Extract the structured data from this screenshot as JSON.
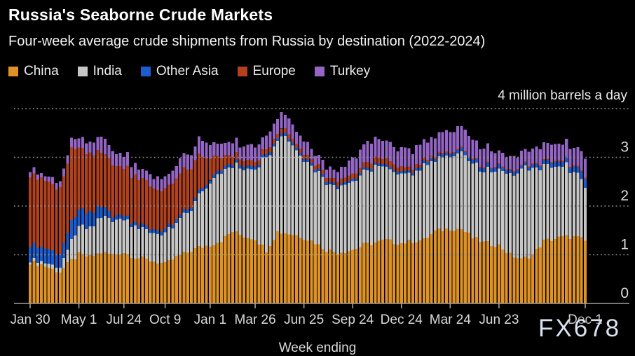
{
  "header": {
    "title": "Russia's Seaborne Crude Markets",
    "subtitle": "Four-week average crude shipments from Russia by destination (2022-2024)",
    "unit_label": "4 million barrels a day"
  },
  "watermark": "FX678",
  "colors": {
    "background": "#000000",
    "grid": "#8f8f8f",
    "axis": "#a0a0a0",
    "tick_text": "#d9d9d9",
    "ytick_text": "#dcdcdc",
    "watermark": "#d8e2f0"
  },
  "chart_data": {
    "type": "bar",
    "stacked": true,
    "title": "Russia's Seaborne Crude Markets",
    "subtitle": "Four-week average crude shipments from Russia by destination (2022-2024)",
    "xlabel": "Week ending",
    "ylabel": "million barrels a day",
    "ylim": [
      0,
      4
    ],
    "yticks": [
      0,
      1,
      2,
      3,
      4
    ],
    "ytick_labels_shown": [
      "0",
      "1",
      "2",
      "3"
    ],
    "grid": "dotted horizontal",
    "legend_position": "top",
    "x_unit": "week index from Jan 30 2022 (week 0) to Dec 1 2024 (week 148)",
    "weeks_total": 149,
    "xticks": [
      {
        "label": "Jan 30",
        "week": 0
      },
      {
        "label": "May 1",
        "week": 13
      },
      {
        "label": "Jul 24",
        "week": 25
      },
      {
        "label": "Oct 9",
        "week": 36
      },
      {
        "label": "Jan 1",
        "week": 48
      },
      {
        "label": "Mar 26",
        "week": 60
      },
      {
        "label": "Jun 25",
        "week": 73
      },
      {
        "label": "Sep 24",
        "week": 86
      },
      {
        "label": "Dec 24",
        "week": 99
      },
      {
        "label": "Mar 24",
        "week": 112
      },
      {
        "label": "Jun 23",
        "week": 125
      },
      {
        "label": "Dec 1",
        "week": 148
      }
    ],
    "sampling": "weekly stacked bars; series values in million barrels/day read from chart; keyframes [week,value] linearly interpolated between anchors",
    "series": [
      {
        "name": "China",
        "color": "#DF9226",
        "jitter": 0.05,
        "keyframes": [
          [
            0,
            0.85
          ],
          [
            3,
            0.8
          ],
          [
            6,
            0.7
          ],
          [
            8,
            0.65
          ],
          [
            11,
            0.88
          ],
          [
            13,
            1.0
          ],
          [
            16,
            0.95
          ],
          [
            19,
            1.05
          ],
          [
            22,
            1.0
          ],
          [
            25,
            1.05
          ],
          [
            28,
            0.95
          ],
          [
            31,
            0.9
          ],
          [
            34,
            0.85
          ],
          [
            36,
            0.8
          ],
          [
            39,
            0.95
          ],
          [
            42,
            1.05
          ],
          [
            45,
            1.15
          ],
          [
            48,
            1.2
          ],
          [
            51,
            1.3
          ],
          [
            54,
            1.48
          ],
          [
            57,
            1.38
          ],
          [
            60,
            1.33
          ],
          [
            63,
            1.1
          ],
          [
            66,
            1.47
          ],
          [
            68,
            1.45
          ],
          [
            71,
            1.4
          ],
          [
            73,
            1.35
          ],
          [
            76,
            1.25
          ],
          [
            79,
            1.1
          ],
          [
            82,
            1.05
          ],
          [
            86,
            1.1
          ],
          [
            89,
            1.2
          ],
          [
            92,
            1.25
          ],
          [
            95,
            1.3
          ],
          [
            97,
            1.25
          ],
          [
            99,
            1.24
          ],
          [
            102,
            1.28
          ],
          [
            105,
            1.3
          ],
          [
            108,
            1.48
          ],
          [
            112,
            1.54
          ],
          [
            115,
            1.53
          ],
          [
            118,
            1.35
          ],
          [
            121,
            1.25
          ],
          [
            125,
            1.19
          ],
          [
            128,
            1.0
          ],
          [
            131,
            0.9
          ],
          [
            134,
            1.0
          ],
          [
            137,
            1.28
          ],
          [
            140,
            1.33
          ],
          [
            143,
            1.37
          ],
          [
            146,
            1.35
          ],
          [
            148,
            1.28
          ]
        ]
      },
      {
        "name": "India",
        "color": "#C6C6C6",
        "jitter": 0.05,
        "keyframes": [
          [
            0,
            0.05
          ],
          [
            6,
            0.08
          ],
          [
            8,
            0.1
          ],
          [
            11,
            0.4
          ],
          [
            13,
            0.55
          ],
          [
            16,
            0.6
          ],
          [
            19,
            0.7
          ],
          [
            22,
            0.7
          ],
          [
            25,
            0.7
          ],
          [
            28,
            0.65
          ],
          [
            31,
            0.6
          ],
          [
            36,
            0.6
          ],
          [
            39,
            0.7
          ],
          [
            42,
            0.8
          ],
          [
            45,
            1.05
          ],
          [
            48,
            1.3
          ],
          [
            51,
            1.4
          ],
          [
            54,
            1.35
          ],
          [
            57,
            1.4
          ],
          [
            60,
            1.45
          ],
          [
            63,
            1.9
          ],
          [
            66,
            1.9
          ],
          [
            68,
            2.0
          ],
          [
            71,
            1.75
          ],
          [
            73,
            1.65
          ],
          [
            76,
            1.5
          ],
          [
            79,
            1.4
          ],
          [
            82,
            1.35
          ],
          [
            86,
            1.4
          ],
          [
            89,
            1.5
          ],
          [
            92,
            1.55
          ],
          [
            95,
            1.45
          ],
          [
            99,
            1.45
          ],
          [
            102,
            1.4
          ],
          [
            105,
            1.5
          ],
          [
            108,
            1.45
          ],
          [
            112,
            1.5
          ],
          [
            115,
            1.55
          ],
          [
            118,
            1.5
          ],
          [
            121,
            1.45
          ],
          [
            125,
            1.55
          ],
          [
            128,
            1.65
          ],
          [
            131,
            1.85
          ],
          [
            134,
            1.8
          ],
          [
            137,
            1.55
          ],
          [
            140,
            1.5
          ],
          [
            143,
            1.45
          ],
          [
            146,
            1.3
          ],
          [
            148,
            1.1
          ]
        ]
      },
      {
        "name": "Other Asia",
        "color": "#1B5CCE",
        "jitter": 0.015,
        "keyframes": [
          [
            0,
            0.33
          ],
          [
            3,
            0.3
          ],
          [
            8,
            0.28
          ],
          [
            11,
            0.38
          ],
          [
            13,
            0.35
          ],
          [
            16,
            0.3
          ],
          [
            19,
            0.22
          ],
          [
            22,
            0.1
          ],
          [
            25,
            0.08
          ],
          [
            48,
            0.07
          ],
          [
            60,
            0.06
          ],
          [
            86,
            0.05
          ],
          [
            99,
            0.05
          ],
          [
            105,
            0.06
          ],
          [
            112,
            0.06
          ],
          [
            115,
            0.08
          ],
          [
            125,
            0.08
          ],
          [
            131,
            0.06
          ],
          [
            137,
            0.08
          ],
          [
            140,
            0.1
          ],
          [
            143,
            0.1
          ],
          [
            146,
            0.12
          ],
          [
            148,
            0.18
          ]
        ]
      },
      {
        "name": "Europe",
        "color": "#B2411E",
        "jitter": 0.035,
        "keyframes": [
          [
            0,
            1.45
          ],
          [
            3,
            1.4
          ],
          [
            6,
            1.35
          ],
          [
            8,
            1.35
          ],
          [
            11,
            1.48
          ],
          [
            13,
            1.3
          ],
          [
            16,
            1.2
          ],
          [
            19,
            1.15
          ],
          [
            22,
            1.05
          ],
          [
            25,
            1.0
          ],
          [
            28,
            0.95
          ],
          [
            31,
            0.9
          ],
          [
            36,
            0.8
          ],
          [
            39,
            0.85
          ],
          [
            42,
            0.85
          ],
          [
            45,
            0.75
          ],
          [
            48,
            0.45
          ],
          [
            51,
            0.25
          ],
          [
            54,
            0.15
          ],
          [
            57,
            0.12
          ],
          [
            60,
            0.1
          ],
          [
            73,
            0.08
          ],
          [
            86,
            0.1
          ],
          [
            92,
            0.12
          ],
          [
            99,
            0.1
          ],
          [
            102,
            0.08
          ],
          [
            105,
            0.05
          ],
          [
            108,
            0.04
          ],
          [
            112,
            0.03
          ],
          [
            115,
            0.02
          ],
          [
            148,
            0.02
          ]
        ]
      },
      {
        "name": "Turkey",
        "color": "#9565C6",
        "jitter": 0.045,
        "keyframes": [
          [
            0,
            0.12
          ],
          [
            3,
            0.1
          ],
          [
            6,
            0.12
          ],
          [
            8,
            0.15
          ],
          [
            11,
            0.18
          ],
          [
            13,
            0.22
          ],
          [
            16,
            0.25
          ],
          [
            19,
            0.3
          ],
          [
            22,
            0.25
          ],
          [
            25,
            0.25
          ],
          [
            28,
            0.22
          ],
          [
            31,
            0.2
          ],
          [
            34,
            0.25
          ],
          [
            36,
            0.22
          ],
          [
            39,
            0.28
          ],
          [
            42,
            0.3
          ],
          [
            45,
            0.32
          ],
          [
            48,
            0.3
          ],
          [
            51,
            0.28
          ],
          [
            54,
            0.3
          ],
          [
            57,
            0.28
          ],
          [
            60,
            0.3
          ],
          [
            63,
            0.28
          ],
          [
            66,
            0.32
          ],
          [
            68,
            0.3
          ],
          [
            71,
            0.28
          ],
          [
            73,
            0.25
          ],
          [
            76,
            0.22
          ],
          [
            79,
            0.2
          ],
          [
            82,
            0.22
          ],
          [
            86,
            0.3
          ],
          [
            89,
            0.38
          ],
          [
            92,
            0.42
          ],
          [
            95,
            0.4
          ],
          [
            97,
            0.35
          ],
          [
            99,
            0.38
          ],
          [
            102,
            0.35
          ],
          [
            105,
            0.4
          ],
          [
            108,
            0.38
          ],
          [
            112,
            0.4
          ],
          [
            115,
            0.45
          ],
          [
            118,
            0.4
          ],
          [
            121,
            0.35
          ],
          [
            125,
            0.3
          ],
          [
            128,
            0.28
          ],
          [
            131,
            0.28
          ],
          [
            134,
            0.3
          ],
          [
            137,
            0.32
          ],
          [
            140,
            0.35
          ],
          [
            143,
            0.38
          ],
          [
            146,
            0.35
          ],
          [
            148,
            0.4
          ]
        ]
      }
    ]
  }
}
